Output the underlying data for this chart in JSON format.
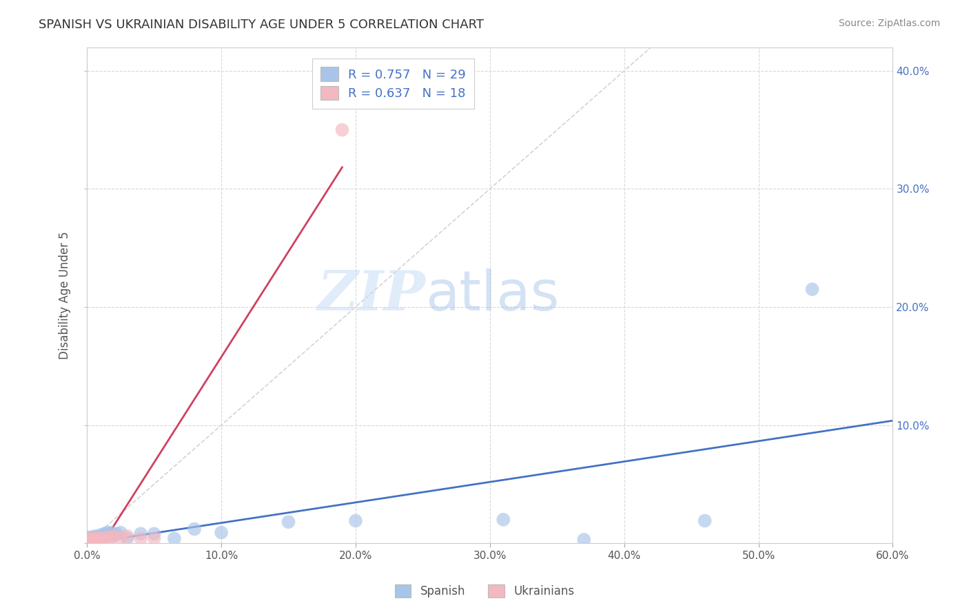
{
  "title": "SPANISH VS UKRAINIAN DISABILITY AGE UNDER 5 CORRELATION CHART",
  "source": "Source: ZipAtlas.com",
  "ylabel": "Disability Age Under 5",
  "xlim": [
    0.0,
    0.6
  ],
  "ylim": [
    0.0,
    0.42
  ],
  "xticks": [
    0.0,
    0.1,
    0.2,
    0.3,
    0.4,
    0.5,
    0.6
  ],
  "yticks": [
    0.0,
    0.1,
    0.2,
    0.3,
    0.4
  ],
  "xtick_labels": [
    "0.0%",
    "10.0%",
    "20.0%",
    "30.0%",
    "40.0%",
    "50.0%",
    "60.0%"
  ],
  "ytick_labels_right": [
    "",
    "10.0%",
    "20.0%",
    "30.0%",
    "40.0%"
  ],
  "watermark_zip": "ZIP",
  "watermark_atlas": "atlas",
  "legend_label_spanish": "R = 0.757   N = 29",
  "legend_label_ukrainian": "R = 0.637   N = 18",
  "spanish_color": "#a8c4e8",
  "ukrainian_color": "#f4b8c0",
  "spanish_line_color": "#4472c4",
  "ukrainian_line_color": "#d04060",
  "diag_line_color": "#c8c8c8",
  "background_color": "#ffffff",
  "title_color": "#333333",
  "source_color": "#888888",
  "spanish_points": [
    [
      0.001,
      0.004
    ],
    [
      0.002,
      0.005
    ],
    [
      0.003,
      0.004
    ],
    [
      0.004,
      0.005
    ],
    [
      0.005,
      0.004
    ],
    [
      0.006,
      0.006
    ],
    [
      0.007,
      0.003
    ],
    [
      0.008,
      0.005
    ],
    [
      0.01,
      0.007
    ],
    [
      0.012,
      0.005
    ],
    [
      0.013,
      0.008
    ],
    [
      0.015,
      0.009
    ],
    [
      0.016,
      0.008
    ],
    [
      0.018,
      0.009
    ],
    [
      0.02,
      0.006
    ],
    [
      0.022,
      0.008
    ],
    [
      0.025,
      0.009
    ],
    [
      0.03,
      0.004
    ],
    [
      0.04,
      0.008
    ],
    [
      0.05,
      0.008
    ],
    [
      0.065,
      0.004
    ],
    [
      0.08,
      0.012
    ],
    [
      0.1,
      0.009
    ],
    [
      0.15,
      0.018
    ],
    [
      0.2,
      0.019
    ],
    [
      0.31,
      0.02
    ],
    [
      0.37,
      0.003
    ],
    [
      0.46,
      0.019
    ],
    [
      0.54,
      0.215
    ]
  ],
  "ukrainian_points": [
    [
      0.001,
      0.003
    ],
    [
      0.002,
      0.003
    ],
    [
      0.003,
      0.004
    ],
    [
      0.004,
      0.003
    ],
    [
      0.005,
      0.003
    ],
    [
      0.006,
      0.004
    ],
    [
      0.007,
      0.003
    ],
    [
      0.008,
      0.004
    ],
    [
      0.01,
      0.004
    ],
    [
      0.012,
      0.004
    ],
    [
      0.015,
      0.005
    ],
    [
      0.018,
      0.005
    ],
    [
      0.02,
      0.006
    ],
    [
      0.025,
      0.005
    ],
    [
      0.03,
      0.006
    ],
    [
      0.04,
      0.004
    ],
    [
      0.19,
      0.35
    ],
    [
      0.05,
      0.004
    ]
  ]
}
